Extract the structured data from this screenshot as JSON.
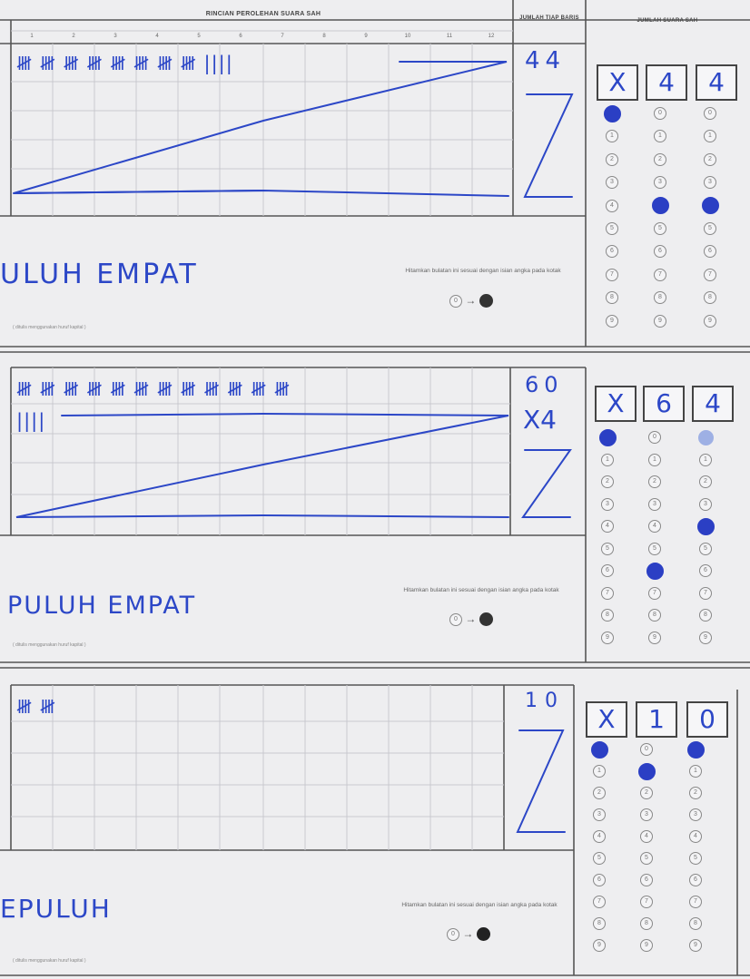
{
  "header": {
    "title": "RINCIAN PEROLEHAN SUARA SAH",
    "col_row_total": "JUMLAH TIAP BARIS",
    "col_valid_total": "JUMLAH SUARA SAH",
    "columns": [
      "1",
      "2",
      "3",
      "4",
      "5",
      "6",
      "7",
      "8",
      "9",
      "10",
      "11",
      "12"
    ]
  },
  "sections": [
    {
      "tally_line1": "𝍸 𝍸 𝍸 𝍸 𝍸 𝍸 𝍸 𝍸 ||||",
      "tally_line2": "",
      "row_total": "44",
      "row_total_extra": "",
      "boxes": [
        "X",
        "4",
        "4"
      ],
      "words": "ULUH EMPAT",
      "instruction": "Hitamkan bulatan ini sesuai dengan isian angka pada kotak",
      "caption": "( ditulis menggunakan huruf kapital )",
      "filled": [
        "",
        "0",
        "4",
        "4"
      ]
    },
    {
      "tally_line1": "𝍸 𝍸 𝍸 𝍸 𝍸 𝍸 𝍸 𝍸 𝍸 𝍸 𝍸 𝍸",
      "tally_line2": "||||",
      "row_total": "60",
      "row_total_extra": "X4",
      "boxes": [
        "X",
        "6",
        "4"
      ],
      "words": "PULUH EMPAT",
      "instruction": "Hitamkan bulatan ini sesuai dengan isian angka pada kotak",
      "caption": "( ditulis menggunakan huruf kapital )",
      "filled": [
        "",
        "0",
        "6",
        "4"
      ]
    },
    {
      "tally_line1": "𝍸 𝍸",
      "tally_line2": "",
      "row_total": "10",
      "row_total_extra": "",
      "boxes": [
        "X",
        "1",
        "0"
      ],
      "words": "EPULUH",
      "instruction": "Hitamkan bulatan ini sesuai dengan isian angka pada kotak",
      "caption": "( ditulis menggunakan huruf kapital )",
      "filled": [
        "",
        "0",
        "1",
        "0"
      ]
    }
  ],
  "bubble_digits": [
    "0",
    "1",
    "2",
    "3",
    "4",
    "5",
    "6",
    "7",
    "8",
    "9"
  ]
}
